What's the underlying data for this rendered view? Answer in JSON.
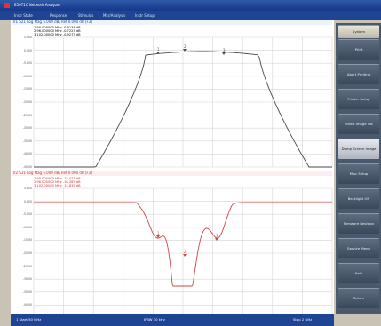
{
  "window": {
    "title": "E5071C Network Analyzer"
  },
  "menu": [
    "Instr State",
    "Response",
    "Stimulus",
    "Mkr/Analysis",
    "Instr Setup"
  ],
  "channels": [
    {
      "header": "Tr1  S21  Log Mag  5.000 dB/  Ref  0.000 dB  [F2]",
      "markers": [
        "1   90.000000 MHz   -0.9134  dB",
        "2   96.000000 MHz   -0.7223  dB",
        "3  102.00000 MHz   -0.9273  dB"
      ],
      "ref": "0.000",
      "ylabels": [
        "5.000",
        "0.000",
        "-5.000",
        "-10.00",
        "-15.00",
        "-20.00",
        "-25.00",
        "-30.00",
        "-35.00",
        "-40.00",
        "-45.00"
      ],
      "mnum": [
        "1",
        "2",
        "3"
      ],
      "color": "#4a4a4a"
    },
    {
      "header": "Tr2  S11  Log Mag  5.000 dB/  Ref  0.000 dB  [F2]",
      "markers": [
        "1   90.000000 MHz  -15.073  dB",
        "2   96.000000 MHz  -18.285  dB",
        "3  102.00000 MHz  -15.835  dB"
      ],
      "ref": "0.000",
      "ylabels": [
        "5.000",
        "0.000",
        "-5.000",
        "-10.00",
        "-15.00",
        "-20.00",
        "-25.00",
        "-30.00",
        "-35.00",
        "-40.00",
        "-45.00"
      ],
      "mnum": [
        "1",
        "2",
        "3"
      ],
      "color": "#d04545"
    }
  ],
  "status": {
    "start": "1  Start  50 MHz",
    "ifbw": "IFBW  30 kHz",
    "stop": "Stop  2 GHz"
  },
  "softkeys": {
    "header": "System",
    "items": [
      "Print",
      "Abort Printing",
      "Printer Setup",
      "Invert Image  ON",
      "Dump Screen Image",
      "Misc Setup",
      "Backlight  ON",
      "Firmware Revision",
      "Service Menu",
      "Help",
      "Return"
    ],
    "selected": 4
  },
  "colors": {
    "trace1": "#4a4a4a",
    "trace2": "#d04545",
    "accent": "#1d4593"
  }
}
